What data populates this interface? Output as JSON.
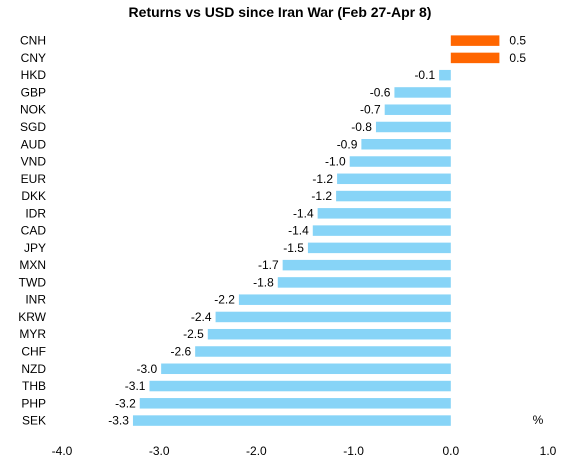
{
  "chart_data": {
    "type": "bar",
    "orientation": "horizontal",
    "title": "Returns vs USD since Iran War (Feb 27-Apr 8)",
    "unit": "%",
    "xlim": [
      -4.0,
      1.0
    ],
    "x_ticks": [
      -4.0,
      -3.0,
      -2.0,
      -1.0,
      0.0,
      1.0
    ],
    "x_tick_labels": [
      "-4.0",
      "-3.0",
      "-2.0",
      "-1.0",
      "0.0",
      "1.0"
    ],
    "grid": false,
    "legend": "none",
    "colors": {
      "positive": "#ff6600",
      "negative": "#87d4f7"
    },
    "categories": [
      "CNH",
      "CNY",
      "HKD",
      "GBP",
      "NOK",
      "SGD",
      "AUD",
      "VND",
      "EUR",
      "DKK",
      "IDR",
      "CAD",
      "JPY",
      "MXN",
      "TWD",
      "INR",
      "KRW",
      "MYR",
      "CHF",
      "NZD",
      "THB",
      "PHP",
      "SEK"
    ],
    "values": [
      0.5,
      0.5,
      -0.12,
      -0.58,
      -0.68,
      -0.77,
      -0.92,
      -1.04,
      -1.17,
      -1.18,
      -1.37,
      -1.42,
      -1.47,
      -1.73,
      -1.78,
      -2.18,
      -2.42,
      -2.5,
      -2.63,
      -2.98,
      -3.1,
      -3.2,
      -3.27
    ],
    "value_labels": [
      "0.5",
      "0.5",
      "-0.1",
      "-0.6",
      "-0.7",
      "-0.8",
      "-0.9",
      "-1.0",
      "-1.2",
      "-1.2",
      "-1.4",
      "-1.4",
      "-1.5",
      "-1.7",
      "-1.8",
      "-2.2",
      "-2.4",
      "-2.5",
      "-2.6",
      "-3.0",
      "-3.1",
      "-3.2",
      "-3.3"
    ]
  }
}
